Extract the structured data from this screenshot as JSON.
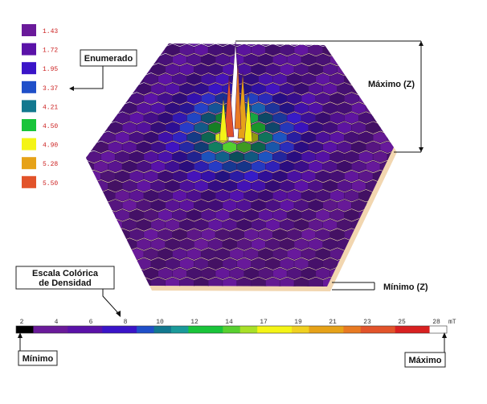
{
  "legend": {
    "entries": [
      {
        "value": "1.43",
        "color": "#6a1a9a"
      },
      {
        "value": "1.72",
        "color": "#5a12a8"
      },
      {
        "value": "1.95",
        "color": "#3a14c8"
      },
      {
        "value": "3.37",
        "color": "#1f4fc9"
      },
      {
        "value": "4.21",
        "color": "#12788f"
      },
      {
        "value": "4.50",
        "color": "#19c43a"
      },
      {
        "value": "4.90",
        "color": "#f4f416"
      },
      {
        "value": "5.28",
        "color": "#e6a218"
      },
      {
        "value": "5.50",
        "color": "#e2532a"
      }
    ]
  },
  "callouts": {
    "enumerado": "Enumerado",
    "maximo_z": "Máximo (Z)",
    "minimo_z": "Mínimo (Z)",
    "escala_line1": "Escala Colórica",
    "escala_line2": "de Densidad",
    "minimo": "Mínimo",
    "maximo": "Máximo"
  },
  "color_scale": {
    "tick_labels": [
      "2",
      "4",
      "6",
      "8",
      "10",
      "12",
      "14",
      "17",
      "19",
      "21",
      "23",
      "25",
      "28"
    ],
    "unit": "mT",
    "segments": [
      "#000000",
      "#6a1a9a",
      "#6a1a9a",
      "#5a12a8",
      "#5a12a8",
      "#3a14c8",
      "#3a14c8",
      "#1f4fc9",
      "#12788f",
      "#1a9a9a",
      "#19c43a",
      "#19c43a",
      "#58d030",
      "#a8e028",
      "#f4f416",
      "#f4f416",
      "#f0d020",
      "#e6a218",
      "#e6a218",
      "#e87a22",
      "#e2532a",
      "#e2532a",
      "#d82020",
      "#d82020",
      "#ffffff"
    ]
  },
  "colors": {
    "cell_base": "#6a1a9a",
    "cell_edge": "#3f0f63",
    "base_plate": "#f2d6b0"
  }
}
